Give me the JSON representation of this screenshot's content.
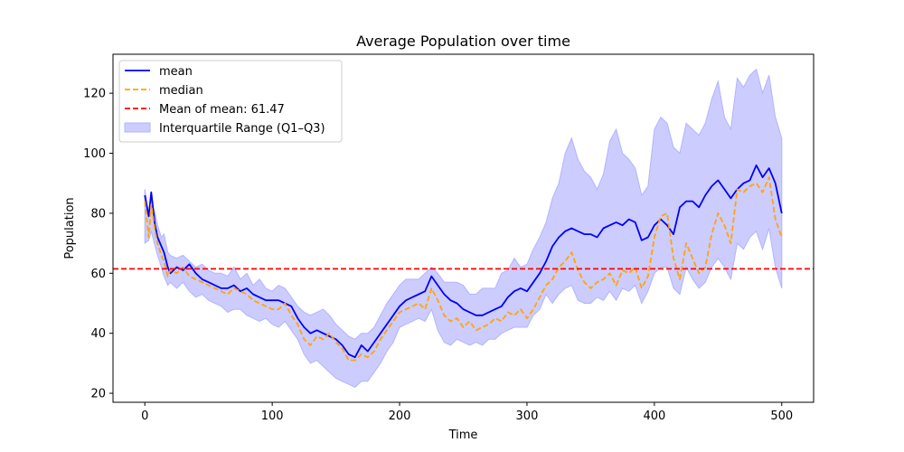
{
  "chart_data": {
    "type": "line",
    "title": "Average Population over time",
    "xlabel": "Time",
    "ylabel": "Population",
    "xlim": [
      -25,
      525
    ],
    "ylim": [
      17,
      133
    ],
    "xticks": [
      0,
      100,
      200,
      300,
      400,
      500
    ],
    "yticks": [
      20,
      40,
      60,
      80,
      100,
      120
    ],
    "grid": false,
    "legend_position": "top-left",
    "colors": {
      "mean": "#0000ff",
      "median": "#ffa500",
      "mean_of_mean": "#ff0000",
      "iqr_fill": "#ccccff",
      "iqr_edge": "#b3b3ff"
    },
    "series": [
      {
        "name": "mean",
        "style": "solid",
        "x": [
          0,
          3,
          5,
          8,
          10,
          13,
          15,
          18,
          20,
          25,
          30,
          35,
          40,
          45,
          50,
          55,
          60,
          65,
          70,
          75,
          80,
          85,
          90,
          95,
          100,
          105,
          110,
          115,
          120,
          125,
          130,
          135,
          140,
          145,
          150,
          155,
          160,
          165,
          170,
          175,
          180,
          185,
          190,
          195,
          200,
          205,
          210,
          215,
          220,
          225,
          230,
          235,
          240,
          245,
          250,
          255,
          260,
          265,
          270,
          275,
          280,
          285,
          290,
          295,
          300,
          305,
          310,
          315,
          320,
          325,
          330,
          335,
          340,
          345,
          350,
          355,
          360,
          365,
          370,
          375,
          380,
          385,
          390,
          395,
          400,
          405,
          410,
          415,
          420,
          425,
          430,
          435,
          440,
          445,
          450,
          455,
          460,
          465,
          470,
          475,
          480,
          485,
          490,
          495,
          500
        ],
        "y": [
          86,
          79,
          87,
          76,
          72,
          69,
          67,
          62,
          60,
          62,
          61,
          63,
          60,
          58,
          57,
          56,
          55,
          55,
          56,
          54,
          55,
          53,
          52,
          51,
          51,
          51,
          50,
          49,
          45,
          42,
          40,
          41,
          40,
          39,
          38,
          36,
          33,
          32,
          36,
          34,
          37,
          40,
          43,
          46,
          49,
          51,
          52,
          53,
          54,
          59,
          56,
          53,
          51,
          50,
          48,
          47,
          46,
          46,
          47,
          48,
          49,
          52,
          54,
          55,
          54,
          57,
          60,
          64,
          69,
          72,
          74,
          75,
          74,
          73,
          73,
          72,
          75,
          76,
          77,
          76,
          78,
          77,
          71,
          72,
          76,
          78,
          76,
          73,
          82,
          84,
          84,
          82,
          86,
          89,
          91,
          88,
          85,
          88,
          90,
          91,
          96,
          92,
          95,
          90,
          80
        ]
      },
      {
        "name": "median",
        "style": "dashed",
        "x": [
          0,
          3,
          5,
          8,
          10,
          13,
          15,
          18,
          20,
          25,
          30,
          35,
          40,
          45,
          50,
          55,
          60,
          65,
          70,
          75,
          80,
          85,
          90,
          95,
          100,
          105,
          110,
          115,
          120,
          125,
          130,
          135,
          140,
          145,
          150,
          155,
          160,
          165,
          170,
          175,
          180,
          185,
          190,
          195,
          200,
          205,
          210,
          215,
          220,
          225,
          230,
          235,
          240,
          245,
          250,
          255,
          260,
          265,
          270,
          275,
          280,
          285,
          290,
          295,
          300,
          305,
          310,
          315,
          320,
          325,
          330,
          335,
          340,
          345,
          350,
          355,
          360,
          365,
          370,
          375,
          380,
          385,
          390,
          395,
          400,
          405,
          410,
          415,
          420,
          425,
          430,
          435,
          440,
          445,
          450,
          455,
          460,
          465,
          470,
          475,
          480,
          485,
          490,
          495,
          500
        ],
        "y": [
          84,
          72,
          83,
          74,
          70,
          66,
          64,
          59,
          61,
          60,
          62,
          59,
          58,
          57,
          56,
          55,
          54,
          53,
          55,
          54,
          53,
          51,
          50,
          49,
          48,
          48,
          50,
          46,
          43,
          38,
          36,
          39,
          38,
          40,
          37,
          35,
          31,
          31,
          33,
          32,
          34,
          38,
          41,
          44,
          47,
          48,
          49,
          50,
          48,
          55,
          51,
          46,
          44,
          45,
          42,
          44,
          41,
          42,
          43,
          45,
          44,
          47,
          46,
          48,
          45,
          48,
          52,
          56,
          58,
          62,
          64,
          67,
          61,
          57,
          55,
          57,
          58,
          60,
          56,
          61,
          60,
          62,
          55,
          59,
          72,
          79,
          80,
          65,
          58,
          70,
          65,
          60,
          62,
          73,
          80,
          76,
          70,
          88,
          87,
          89,
          90,
          87,
          92,
          78,
          72
        ]
      },
      {
        "name": "Mean of mean: 61.47",
        "style": "dashed-horizontal",
        "value": 61.47
      }
    ],
    "band": {
      "name": "Interquartile Range (Q1–Q3)",
      "x": [
        0,
        3,
        5,
        8,
        10,
        13,
        15,
        18,
        20,
        25,
        30,
        35,
        40,
        45,
        50,
        55,
        60,
        65,
        70,
        75,
        80,
        85,
        90,
        95,
        100,
        105,
        110,
        115,
        120,
        125,
        130,
        135,
        140,
        145,
        150,
        155,
        160,
        165,
        170,
        175,
        180,
        185,
        190,
        195,
        200,
        205,
        210,
        215,
        220,
        225,
        230,
        235,
        240,
        245,
        250,
        255,
        260,
        265,
        270,
        275,
        280,
        285,
        290,
        295,
        300,
        305,
        310,
        315,
        320,
        325,
        330,
        335,
        340,
        345,
        350,
        355,
        360,
        365,
        370,
        375,
        380,
        385,
        390,
        395,
        400,
        405,
        410,
        415,
        420,
        425,
        430,
        435,
        440,
        445,
        450,
        455,
        460,
        465,
        470,
        475,
        480,
        485,
        490,
        495,
        500
      ],
      "lower": [
        70,
        71,
        74,
        69,
        66,
        62,
        59,
        56,
        57,
        55,
        57,
        54,
        52,
        53,
        51,
        50,
        49,
        47,
        48,
        48,
        46,
        45,
        44,
        45,
        43,
        42,
        44,
        41,
        38,
        33,
        30,
        31,
        29,
        27,
        25,
        24,
        23,
        22,
        24,
        24,
        27,
        30,
        34,
        37,
        42,
        43,
        44,
        45,
        44,
        48,
        41,
        37,
        36,
        38,
        37,
        36,
        37,
        36,
        38,
        38,
        40,
        41,
        42,
        42,
        42,
        46,
        48,
        53,
        50,
        53,
        55,
        56,
        51,
        50,
        50,
        52,
        51,
        54,
        51,
        55,
        54,
        56,
        50,
        54,
        60,
        62,
        62,
        55,
        53,
        62,
        58,
        55,
        57,
        62,
        65,
        62,
        58,
        70,
        68,
        72,
        74,
        68,
        75,
        62,
        55
      ],
      "upper": [
        88,
        80,
        84,
        80,
        76,
        72,
        73,
        67,
        66,
        65,
        66,
        64,
        62,
        63,
        61,
        60,
        60,
        59,
        62,
        58,
        60,
        56,
        58,
        55,
        54,
        56,
        55,
        52,
        49,
        47,
        46,
        47,
        48,
        46,
        43,
        41,
        39,
        38,
        40,
        40,
        42,
        46,
        50,
        53,
        56,
        58,
        58,
        58,
        60,
        62,
        60,
        57,
        57,
        57,
        56,
        53,
        53,
        55,
        55,
        55,
        60,
        61,
        65,
        62,
        63,
        68,
        72,
        77,
        85,
        90,
        100,
        105,
        98,
        94,
        92,
        88,
        93,
        104,
        108,
        100,
        98,
        95,
        86,
        89,
        108,
        112,
        110,
        102,
        100,
        110,
        108,
        106,
        110,
        118,
        124,
        112,
        108,
        125,
        122,
        126,
        128,
        120,
        126,
        112,
        105
      ]
    }
  }
}
